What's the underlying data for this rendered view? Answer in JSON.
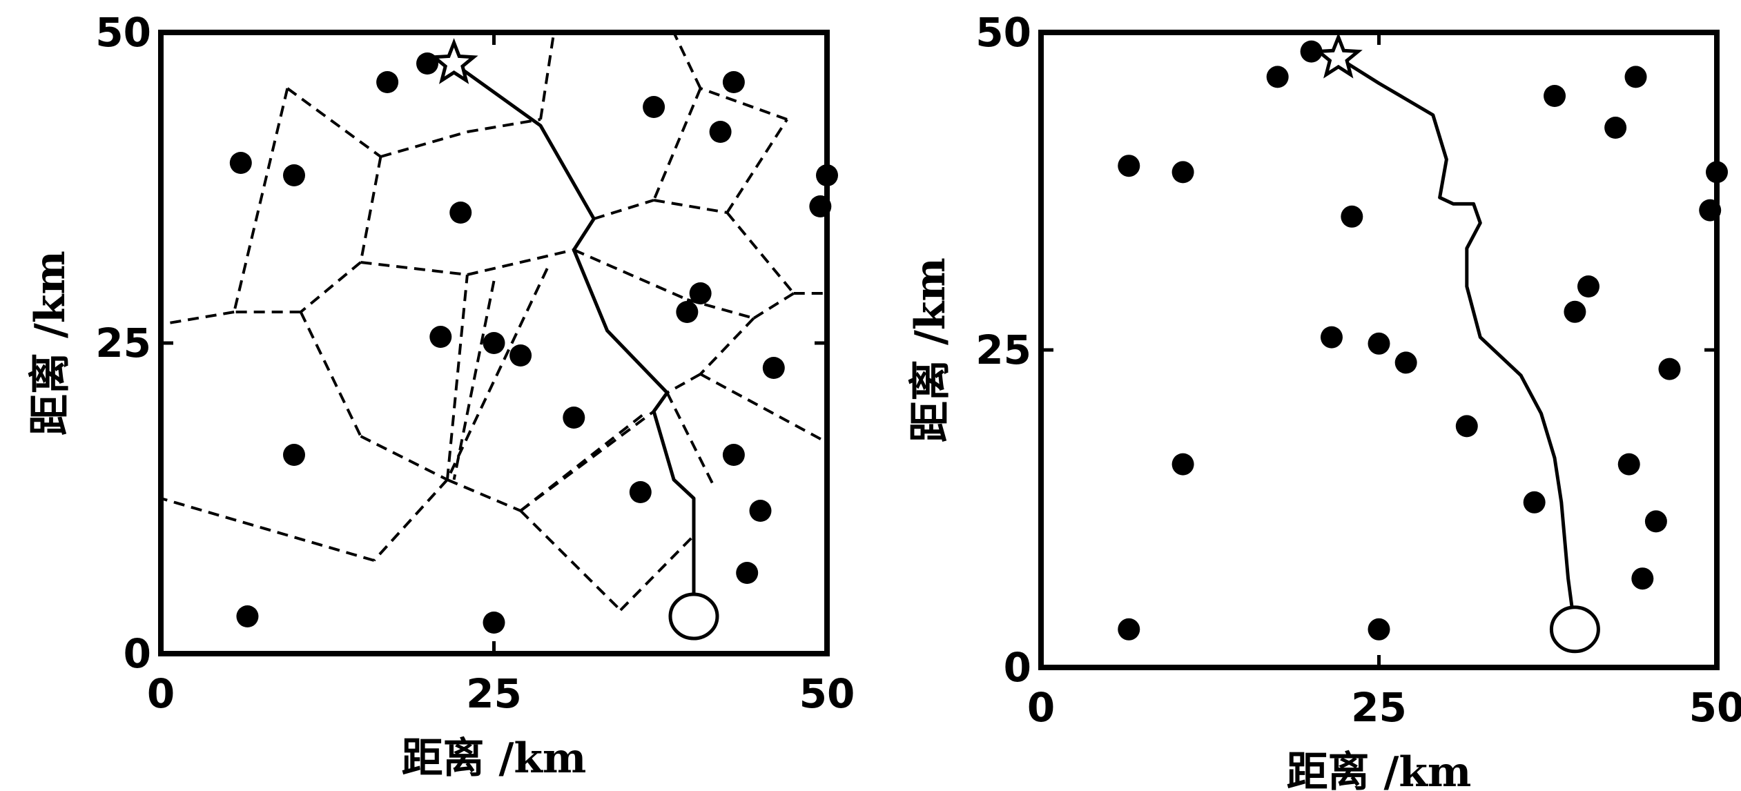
{
  "panels": [
    {
      "xlabel": "距离 /km",
      "ylabel": "距离 /km",
      "xticks": [
        "0",
        "25",
        "50"
      ],
      "yticks": [
        "0",
        "25",
        "50"
      ],
      "xlim": [
        0,
        50
      ],
      "ylim": [
        0,
        50
      ],
      "points": [
        [
          20.0,
          47.5
        ],
        [
          17.0,
          46.0
        ],
        [
          6.0,
          39.5
        ],
        [
          10.0,
          38.5
        ],
        [
          22.5,
          35.5
        ],
        [
          37.0,
          44.0
        ],
        [
          43.0,
          46.0
        ],
        [
          42.0,
          42.0
        ],
        [
          50.0,
          38.5
        ],
        [
          49.5,
          36.0
        ],
        [
          40.5,
          29.0
        ],
        [
          39.5,
          27.5
        ],
        [
          21.0,
          25.5
        ],
        [
          25.0,
          25.0
        ],
        [
          27.0,
          24.0
        ],
        [
          46.0,
          23.0
        ],
        [
          31.0,
          19.0
        ],
        [
          10.0,
          16.0
        ],
        [
          43.0,
          16.0
        ],
        [
          36.0,
          13.0
        ],
        [
          45.0,
          11.5
        ],
        [
          44.0,
          6.5
        ],
        [
          6.5,
          3.0
        ],
        [
          25.0,
          2.5
        ]
      ],
      "star": [
        22.0,
        47.5
      ],
      "circle": [
        40.0,
        3.0
      ],
      "path": [
        [
          22.0,
          47.5
        ],
        [
          28.5,
          42.5
        ],
        [
          32.5,
          35.0
        ],
        [
          31.0,
          32.5
        ],
        [
          33.5,
          26.0
        ],
        [
          38.0,
          21.0
        ],
        [
          37.0,
          19.5
        ],
        [
          38.5,
          14.0
        ],
        [
          40.0,
          12.5
        ],
        [
          40.0,
          3.0
        ]
      ],
      "voronoi_segments": [
        [
          [
            9.5,
            45.5
          ],
          [
            5.5,
            27.5
          ]
        ],
        [
          [
            9.5,
            45.5
          ],
          [
            16.5,
            40.0
          ]
        ],
        [
          [
            16.5,
            40.0
          ],
          [
            23.0,
            42.0
          ]
        ],
        [
          [
            23.0,
            42.0
          ],
          [
            28.5,
            43.0
          ]
        ],
        [
          [
            28.5,
            43.0
          ],
          [
            29.5,
            50.0
          ]
        ],
        [
          [
            16.5,
            40.0
          ],
          [
            15.0,
            31.5
          ]
        ],
        [
          [
            15.0,
            31.5
          ],
          [
            23.0,
            30.5
          ]
        ],
        [
          [
            23.0,
            30.5
          ],
          [
            31.0,
            32.5
          ]
        ],
        [
          [
            15.0,
            31.5
          ],
          [
            10.5,
            27.5
          ]
        ],
        [
          [
            10.5,
            27.5
          ],
          [
            5.5,
            27.5
          ]
        ],
        [
          [
            5.5,
            27.5
          ],
          [
            0.0,
            26.5
          ]
        ],
        [
          [
            10.5,
            27.5
          ],
          [
            15.0,
            17.5
          ]
        ],
        [
          [
            15.0,
            17.5
          ],
          [
            21.5,
            14.0
          ]
        ],
        [
          [
            21.5,
            14.0
          ],
          [
            23.0,
            30.5
          ]
        ],
        [
          [
            21.5,
            14.0
          ],
          [
            16.0,
            7.5
          ]
        ],
        [
          [
            16.0,
            7.5
          ],
          [
            0.0,
            12.5
          ]
        ],
        [
          [
            21.5,
            14.0
          ],
          [
            27.0,
            11.5
          ]
        ],
        [
          [
            27.0,
            11.5
          ],
          [
            34.5,
            3.5
          ]
        ],
        [
          [
            27.0,
            11.5
          ],
          [
            36.5,
            19.5
          ]
        ],
        [
          [
            34.5,
            3.5
          ],
          [
            40.0,
            9.5
          ]
        ],
        [
          [
            32.5,
            35.0
          ],
          [
            37.0,
            36.5
          ]
        ],
        [
          [
            37.0,
            36.5
          ],
          [
            42.5,
            35.5
          ]
        ],
        [
          [
            42.5,
            35.5
          ],
          [
            47.0,
            43.0
          ]
        ],
        [
          [
            47.0,
            43.0
          ],
          [
            40.5,
            45.5
          ]
        ],
        [
          [
            40.5,
            45.5
          ],
          [
            38.5,
            50.0
          ]
        ],
        [
          [
            40.5,
            45.5
          ],
          [
            37.0,
            36.5
          ]
        ],
        [
          [
            42.5,
            35.5
          ],
          [
            47.5,
            29.0
          ]
        ],
        [
          [
            47.5,
            29.0
          ],
          [
            50.0,
            29.0
          ]
        ],
        [
          [
            47.5,
            29.0
          ],
          [
            44.5,
            27.0
          ]
        ],
        [
          [
            44.5,
            27.0
          ],
          [
            40.5,
            22.5
          ]
        ],
        [
          [
            40.5,
            22.5
          ],
          [
            38.0,
            21.0
          ]
        ],
        [
          [
            40.5,
            22.5
          ],
          [
            50.0,
            17.0
          ]
        ],
        [
          [
            31.0,
            32.5
          ],
          [
            39.5,
            28.5
          ]
        ],
        [
          [
            39.5,
            28.5
          ],
          [
            44.5,
            27.0
          ]
        ],
        [
          [
            29.0,
            31.0
          ],
          [
            21.5,
            14.0
          ]
        ],
        [
          [
            25.0,
            30.0
          ],
          [
            22.0,
            14.0
          ]
        ],
        [
          [
            27.0,
            11.5
          ],
          [
            37.0,
            19.5
          ]
        ],
        [
          [
            38.0,
            21.0
          ],
          [
            41.5,
            13.5
          ]
        ]
      ]
    },
    {
      "xlabel": "距离 /km",
      "ylabel": "距离 /km",
      "xticks": [
        "0",
        "25",
        "50"
      ],
      "yticks": [
        "0",
        "25",
        "50"
      ],
      "xlim": [
        0,
        50
      ],
      "ylim": [
        0,
        50
      ],
      "points": [
        [
          20.0,
          48.5
        ],
        [
          17.5,
          46.5
        ],
        [
          6.5,
          39.5
        ],
        [
          10.5,
          39.0
        ],
        [
          23.0,
          35.5
        ],
        [
          38.0,
          45.0
        ],
        [
          44.0,
          46.5
        ],
        [
          42.5,
          42.5
        ],
        [
          50.0,
          39.0
        ],
        [
          49.5,
          36.0
        ],
        [
          40.5,
          30.0
        ],
        [
          39.5,
          28.0
        ],
        [
          21.5,
          26.0
        ],
        [
          25.0,
          25.5
        ],
        [
          27.0,
          24.0
        ],
        [
          46.5,
          23.5
        ],
        [
          31.5,
          19.0
        ],
        [
          10.5,
          16.0
        ],
        [
          43.5,
          16.0
        ],
        [
          36.5,
          13.0
        ],
        [
          45.5,
          11.5
        ],
        [
          44.5,
          7.0
        ],
        [
          6.5,
          3.0
        ],
        [
          25.0,
          3.0
        ]
      ],
      "star": [
        22.0,
        48.0
      ],
      "circle": [
        39.5,
        3.0
      ],
      "path": [
        [
          22.0,
          48.0
        ],
        [
          25.0,
          46.0
        ],
        [
          29.0,
          43.5
        ],
        [
          30.0,
          40.0
        ],
        [
          29.5,
          37.0
        ],
        [
          30.5,
          36.5
        ],
        [
          32.0,
          36.5
        ],
        [
          32.5,
          35.0
        ],
        [
          31.5,
          33.0
        ],
        [
          31.5,
          30.0
        ],
        [
          32.5,
          26.0
        ],
        [
          35.5,
          23.0
        ],
        [
          37.0,
          20.0
        ],
        [
          38.0,
          16.5
        ],
        [
          38.5,
          13.0
        ],
        [
          39.0,
          7.0
        ],
        [
          39.5,
          3.0
        ]
      ]
    }
  ]
}
